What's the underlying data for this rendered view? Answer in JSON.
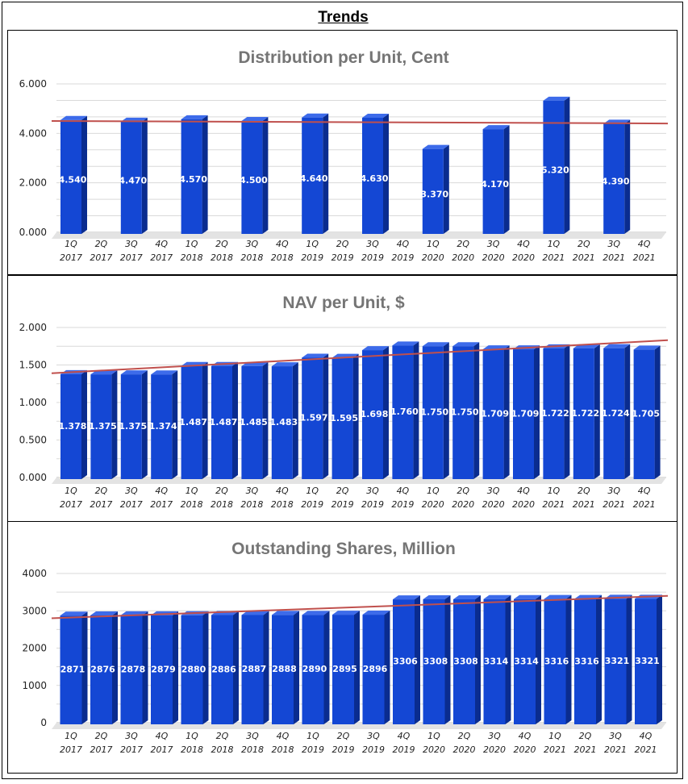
{
  "page": {
    "title": "Trends"
  },
  "colors": {
    "bar": "#1447d4",
    "bar_side": "#0a2c8f",
    "bar_top": "#3d6bea",
    "trend": "#c0504d",
    "grid": "#d9d9d9",
    "title": "#757575"
  },
  "chart_data": [
    {
      "type": "bar",
      "title": "Distribution per Unit, Cent",
      "xlabel": "",
      "ylabel": "",
      "ylim": [
        0,
        6
      ],
      "yticks": [
        "0.000",
        "2.000",
        "4.000",
        "6.000"
      ],
      "categories": [
        [
          "1Q",
          "2017"
        ],
        [
          "2Q",
          "2017"
        ],
        [
          "3Q",
          "2017"
        ],
        [
          "4Q",
          "2017"
        ],
        [
          "1Q",
          "2018"
        ],
        [
          "2Q",
          "2018"
        ],
        [
          "3Q",
          "2018"
        ],
        [
          "4Q",
          "2018"
        ],
        [
          "1Q",
          "2019"
        ],
        [
          "2Q",
          "2019"
        ],
        [
          "3Q",
          "2019"
        ],
        [
          "4Q",
          "2019"
        ],
        [
          "1Q",
          "2020"
        ],
        [
          "2Q",
          "2020"
        ],
        [
          "3Q",
          "2020"
        ],
        [
          "4Q",
          "2020"
        ],
        [
          "1Q",
          "2021"
        ],
        [
          "2Q",
          "2021"
        ],
        [
          "3Q",
          "2021"
        ],
        [
          "4Q",
          "2021"
        ]
      ],
      "values": [
        4.54,
        null,
        4.47,
        null,
        4.57,
        null,
        4.5,
        null,
        4.64,
        null,
        4.63,
        null,
        3.37,
        null,
        4.17,
        null,
        5.32,
        null,
        4.39,
        null
      ],
      "labels": [
        "4.540",
        "",
        "4.470",
        "",
        "4.570",
        "",
        "4.500",
        "",
        "4.640",
        "",
        "4.630",
        "",
        "3.370",
        "",
        "4.170",
        "",
        "5.320",
        "",
        "4.390",
        ""
      ],
      "trendline": [
        4.5,
        4.4
      ]
    },
    {
      "type": "bar",
      "title": "NAV per Unit, $",
      "xlabel": "",
      "ylabel": "",
      "ylim": [
        0,
        2
      ],
      "yticks": [
        "0.000",
        "0.500",
        "1.000",
        "1.500",
        "2.000"
      ],
      "categories": [
        [
          "1Q",
          "2017"
        ],
        [
          "2Q",
          "2017"
        ],
        [
          "3Q",
          "2017"
        ],
        [
          "4Q",
          "2017"
        ],
        [
          "1Q",
          "2018"
        ],
        [
          "2Q",
          "2018"
        ],
        [
          "3Q",
          "2018"
        ],
        [
          "4Q",
          "2018"
        ],
        [
          "1Q",
          "2019"
        ],
        [
          "2Q",
          "2019"
        ],
        [
          "3Q",
          "2019"
        ],
        [
          "4Q",
          "2019"
        ],
        [
          "1Q",
          "2020"
        ],
        [
          "2Q",
          "2020"
        ],
        [
          "3Q",
          "2020"
        ],
        [
          "4Q",
          "2020"
        ],
        [
          "1Q",
          "2021"
        ],
        [
          "2Q",
          "2021"
        ],
        [
          "3Q",
          "2021"
        ],
        [
          "4Q",
          "2021"
        ]
      ],
      "values": [
        1.378,
        1.375,
        1.375,
        1.374,
        1.487,
        1.487,
        1.485,
        1.483,
        1.597,
        1.595,
        1.698,
        1.76,
        1.75,
        1.75,
        1.709,
        1.709,
        1.722,
        1.722,
        1.724,
        1.705
      ],
      "labels": [
        "1.378",
        "1.375",
        "1.375",
        "1.374",
        "1.487",
        "1.487",
        "1.485",
        "1.483",
        "1.597",
        "1.595",
        "1.698",
        "1.760",
        "1.750",
        "1.750",
        "1.709",
        "1.709",
        "1.722",
        "1.722",
        "1.724",
        "1.705"
      ],
      "trendline": [
        1.39,
        1.83
      ]
    },
    {
      "type": "bar",
      "title": "Outstanding Shares, Million",
      "xlabel": "",
      "ylabel": "",
      "ylim": [
        0,
        4000
      ],
      "yticks": [
        "0",
        "1000",
        "2000",
        "3000",
        "4000"
      ],
      "categories": [
        [
          "1Q",
          "2017"
        ],
        [
          "2Q",
          "2017"
        ],
        [
          "3Q",
          "2017"
        ],
        [
          "4Q",
          "2017"
        ],
        [
          "1Q",
          "2018"
        ],
        [
          "2Q",
          "2018"
        ],
        [
          "3Q",
          "2018"
        ],
        [
          "4Q",
          "2018"
        ],
        [
          "1Q",
          "2019"
        ],
        [
          "2Q",
          "2019"
        ],
        [
          "3Q",
          "2019"
        ],
        [
          "4Q",
          "2019"
        ],
        [
          "1Q",
          "2020"
        ],
        [
          "2Q",
          "2020"
        ],
        [
          "3Q",
          "2020"
        ],
        [
          "4Q",
          "2020"
        ],
        [
          "1Q",
          "2021"
        ],
        [
          "2Q",
          "2021"
        ],
        [
          "3Q",
          "2021"
        ],
        [
          "4Q",
          "2021"
        ]
      ],
      "values": [
        2871,
        2876,
        2878,
        2879,
        2880,
        2886,
        2887,
        2888,
        2890,
        2895,
        2896,
        3306,
        3308,
        3308,
        3314,
        3314,
        3316,
        3316,
        3321,
        3321
      ],
      "labels": [
        "2871",
        "2876",
        "2878",
        "2879",
        "2880",
        "2886",
        "2887",
        "2888",
        "2890",
        "2895",
        "2896",
        "3306",
        "3308",
        "3308",
        "3314",
        "3314",
        "3316",
        "3316",
        "3321",
        "3321"
      ],
      "trendline": [
        2800,
        3400
      ]
    }
  ]
}
